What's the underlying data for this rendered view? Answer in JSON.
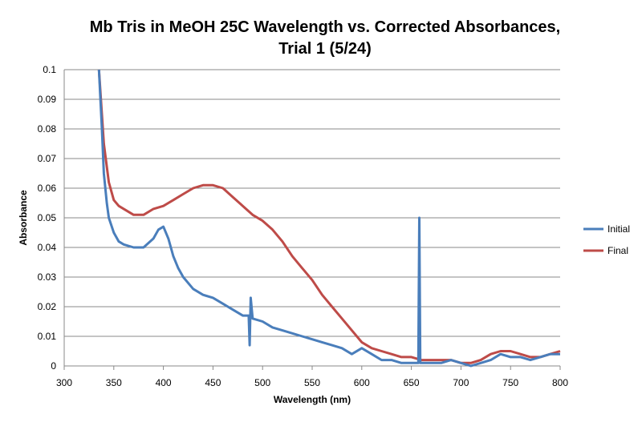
{
  "chart_data": {
    "type": "line",
    "title": [
      "Mb Tris in MeOH 25C Wavelength vs. Corrected Absorbances,",
      "Trial 1 (5/24)"
    ],
    "xlabel": "Wavelength (nm)",
    "ylabel": "Absorbance",
    "xlim": [
      300,
      800
    ],
    "ylim": [
      0,
      0.1
    ],
    "xticks": [
      "300",
      "350",
      "400",
      "450",
      "500",
      "550",
      "600",
      "650",
      "700",
      "750",
      "800"
    ],
    "yticks": [
      "0",
      "0.01",
      "0.02",
      "0.03",
      "0.04",
      "0.05",
      "0.06",
      "0.07",
      "0.08",
      "0.09",
      "0.1"
    ],
    "grid": "horizontal",
    "legend": "right",
    "series": [
      {
        "name": "Initial",
        "color": "#4a7ebb",
        "x": [
          335,
          338,
          340,
          343,
          345,
          350,
          355,
          360,
          370,
          380,
          390,
          395,
          400,
          405,
          410,
          415,
          420,
          430,
          440,
          450,
          460,
          470,
          480,
          486,
          487,
          488,
          490,
          500,
          510,
          520,
          530,
          540,
          550,
          560,
          570,
          580,
          590,
          600,
          610,
          620,
          630,
          640,
          650,
          657,
          658,
          659,
          670,
          680,
          690,
          700,
          710,
          720,
          730,
          740,
          750,
          760,
          770,
          780,
          790,
          800
        ],
        "y": [
          0.1,
          0.08,
          0.065,
          0.055,
          0.05,
          0.045,
          0.042,
          0.041,
          0.04,
          0.04,
          0.043,
          0.046,
          0.047,
          0.043,
          0.037,
          0.033,
          0.03,
          0.026,
          0.024,
          0.023,
          0.021,
          0.019,
          0.017,
          0.017,
          0.007,
          0.023,
          0.016,
          0.015,
          0.013,
          0.012,
          0.011,
          0.01,
          0.009,
          0.008,
          0.007,
          0.006,
          0.004,
          0.006,
          0.004,
          0.002,
          0.002,
          0.001,
          0.001,
          0.001,
          0.05,
          0.001,
          0.001,
          0.001,
          0.002,
          0.001,
          0.0,
          0.001,
          0.002,
          0.004,
          0.003,
          0.003,
          0.002,
          0.003,
          0.004,
          0.004
        ]
      },
      {
        "name": "Final",
        "color": "#be4b48",
        "x": [
          335,
          340,
          345,
          350,
          355,
          360,
          370,
          380,
          390,
          400,
          410,
          420,
          430,
          440,
          450,
          460,
          470,
          480,
          490,
          500,
          510,
          520,
          530,
          540,
          550,
          560,
          570,
          580,
          590,
          600,
          610,
          620,
          630,
          640,
          650,
          660,
          670,
          680,
          690,
          700,
          710,
          720,
          730,
          740,
          750,
          760,
          770,
          780,
          790,
          800
        ],
        "y": [
          0.1,
          0.075,
          0.062,
          0.056,
          0.054,
          0.053,
          0.051,
          0.051,
          0.053,
          0.054,
          0.056,
          0.058,
          0.06,
          0.061,
          0.061,
          0.06,
          0.057,
          0.054,
          0.051,
          0.049,
          0.046,
          0.042,
          0.037,
          0.033,
          0.029,
          0.024,
          0.02,
          0.016,
          0.012,
          0.008,
          0.006,
          0.005,
          0.004,
          0.003,
          0.003,
          0.002,
          0.002,
          0.002,
          0.002,
          0.001,
          0.001,
          0.002,
          0.004,
          0.005,
          0.005,
          0.004,
          0.003,
          0.003,
          0.004,
          0.005
        ]
      }
    ]
  }
}
